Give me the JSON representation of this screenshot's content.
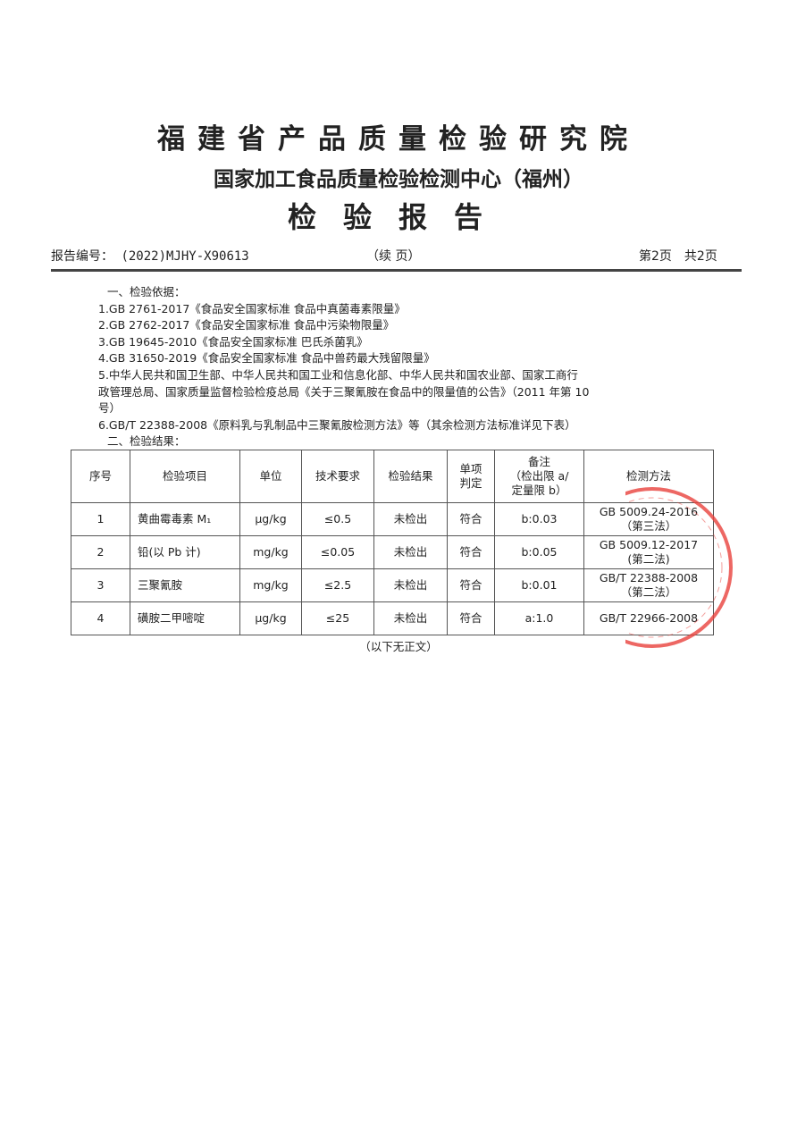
{
  "header": {
    "institute": "福建省产品质量检验研究院",
    "center": "国家加工食品质量检验检测中心（福州）",
    "title": "检验报告",
    "report_no_label": "报告编号：",
    "report_no": "(2022)MJHY-X90613",
    "continued": "（续 页）",
    "page_info": "第2页　共2页"
  },
  "basis": {
    "heading": "一、检验依据：",
    "items": [
      "1.GB 2761-2017《食品安全国家标准 食品中真菌毒素限量》",
      "2.GB 2762-2017《食品安全国家标准 食品中污染物限量》",
      "3.GB 19645-2010《食品安全国家标准 巴氏杀菌乳》",
      "4.GB 31650-2019《食品安全国家标准 食品中兽药最大残留限量》",
      "5.中华人民共和国卫生部、中华人民共和国工业和信息化部、中华人民共和国农业部、国家工商行",
      "政管理总局、国家质量监督检验检疫总局《关于三聚氰胺在食品中的限量值的公告》（2011 年第 10",
      "号）",
      "6.GB/T 22388-2008《原料乳与乳制品中三聚氰胺检测方法》等（其余检测方法标准详见下表）"
    ]
  },
  "results": {
    "heading": "二、检验结果：",
    "columns": [
      "序号",
      "检验项目",
      "单位",
      "技术要求",
      "检验结果",
      "单项\n判定",
      "备注\n（检出限 a/\n定量限 b）",
      "检测方法"
    ],
    "rows": [
      [
        "1",
        "黄曲霉毒素 M₁",
        "μg/kg",
        "≤0.5",
        "未检出",
        "符合",
        "b:0.03",
        "GB 5009.24-2016\n（第三法）"
      ],
      [
        "2",
        "铅(以 Pb 计)",
        "mg/kg",
        "≤0.05",
        "未检出",
        "符合",
        "b:0.05",
        "GB 5009.12-2017\n(第二法)"
      ],
      [
        "3",
        "三聚氰胺",
        "mg/kg",
        "≤2.5",
        "未检出",
        "符合",
        "b:0.01",
        "GB/T 22388-2008\n（第二法）"
      ],
      [
        "4",
        "磺胺二甲嘧啶",
        "μg/kg",
        "≤25",
        "未检出",
        "符合",
        "a:1.0",
        "GB/T 22966-2008"
      ]
    ],
    "footer": "（以下无正文）"
  },
  "stamp": {
    "color": "#e8413c"
  }
}
